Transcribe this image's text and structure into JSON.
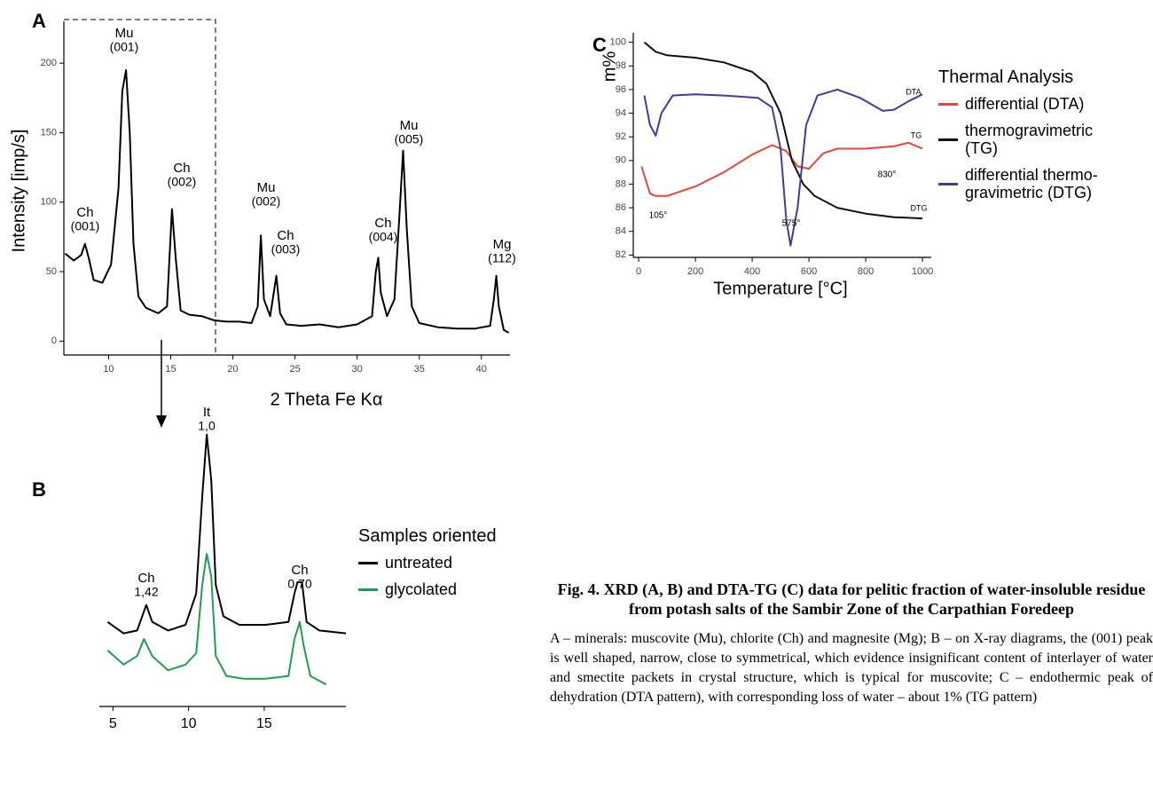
{
  "chart_data": [
    {
      "type": "line",
      "panel": "A",
      "y_label": "Intensity [imp/s]",
      "x_label": "2 Theta Fe Kα",
      "xlim": [
        6.4,
        42.3
      ],
      "ylim": [
        -10,
        225
      ],
      "xticks": [
        10,
        15,
        20,
        25,
        30,
        35,
        40
      ],
      "yticks": [
        0,
        50,
        100,
        150,
        200
      ],
      "series": [
        {
          "color": "#000000",
          "x": [
            6.5,
            7.2,
            7.8,
            8.1,
            8.4,
            8.8,
            9.5,
            10.2,
            10.8,
            11.1,
            11.4,
            11.7,
            12.0,
            12.4,
            13.0,
            14.0,
            14.7,
            15.1,
            15.4,
            15.8,
            16.5,
            17.5,
            18.5,
            19.5,
            20.5,
            21.5,
            22.0,
            22.25,
            22.5,
            23.0,
            23.5,
            23.8,
            24.3,
            25.5,
            27.0,
            28.5,
            30.0,
            31.2,
            31.5,
            31.7,
            31.9,
            32.4,
            33.0,
            33.4,
            33.7,
            34.0,
            34.4,
            35.0,
            36.5,
            38.0,
            39.5,
            40.7,
            41.0,
            41.2,
            41.4,
            41.8,
            42.2
          ],
          "values": [
            63,
            58,
            62,
            70,
            60,
            44,
            42,
            55,
            110,
            180,
            195,
            150,
            70,
            32,
            24,
            20,
            25,
            95,
            60,
            22,
            19,
            18,
            15,
            14,
            14,
            13,
            25,
            76,
            30,
            18,
            47,
            20,
            12,
            11,
            12,
            10,
            12,
            18,
            50,
            60,
            35,
            18,
            30,
            90,
            137,
            80,
            25,
            13,
            10,
            9,
            9,
            11,
            30,
            47,
            25,
            8,
            6
          ]
        }
      ],
      "annotations": [
        {
          "label": "Ch",
          "sub": "(001)"
        },
        {
          "label": "Mu",
          "sub": "(001)"
        },
        {
          "label": "Ch",
          "sub": "(002)"
        },
        {
          "label": "Mu",
          "sub": "(002)"
        },
        {
          "label": "Ch",
          "sub": "(003)"
        },
        {
          "label": "Ch",
          "sub": "(004)"
        },
        {
          "label": "Mu",
          "sub": "(005)"
        },
        {
          "label": "Mg",
          "sub": "(112)"
        }
      ]
    },
    {
      "type": "line",
      "panel": "B",
      "xlim": [
        4.1,
        20.4
      ],
      "ylim": [
        0,
        100
      ],
      "xticks": [
        5,
        10,
        15
      ],
      "legend_title": "Samples oriented",
      "series": [
        {
          "name": "untreated",
          "color": "#000000",
          "x": [
            4.65,
            5.7,
            6.6,
            7.2,
            7.6,
            8.65,
            9.8,
            10.5,
            10.9,
            11.2,
            11.5,
            11.8,
            12.3,
            13.35,
            15.1,
            16.6,
            17.0,
            17.2,
            17.5,
            17.8,
            18.65,
            20.4
          ],
          "values": [
            31,
            27,
            28,
            37,
            31,
            28,
            30,
            41,
            75,
            97,
            81,
            44,
            33,
            30,
            30,
            31,
            41,
            45,
            45,
            31,
            28,
            27
          ]
        },
        {
          "name": "glycolated",
          "color": "#1f9e4f",
          "x": [
            4.65,
            5.7,
            6.6,
            7.05,
            7.6,
            8.65,
            9.8,
            10.5,
            10.9,
            11.2,
            11.5,
            11.8,
            12.5,
            13.65,
            15.1,
            16.6,
            17.0,
            17.35,
            17.6,
            18.05,
            19.1
          ],
          "values": [
            21,
            16,
            19,
            25,
            19,
            14,
            16,
            20,
            44,
            55,
            47,
            19,
            12,
            11,
            11,
            12,
            25,
            31,
            23,
            12,
            9
          ]
        }
      ],
      "annotations": [
        {
          "label": "Ch",
          "sub": "1,42"
        },
        {
          "label": "It",
          "sub": "1,0"
        },
        {
          "label": "Ch",
          "sub": "0,70"
        }
      ]
    },
    {
      "type": "line",
      "panel": "C",
      "y_label": "m%",
      "x_label": "Temperature [°C]",
      "xlim": [
        -19,
        1031
      ],
      "ylim": [
        81.8,
        100.2
      ],
      "xticks": [
        0,
        200,
        400,
        600,
        800,
        1000
      ],
      "yticks": [
        82,
        84,
        86,
        88,
        90,
        92,
        94,
        96,
        98,
        100
      ],
      "legend_title": "Thermal Analysis",
      "series": [
        {
          "name": "differential (DTA)",
          "curve_label": "DTA",
          "color": "#e8453c",
          "x": [
            10,
            40,
            60,
            100,
            200,
            300,
            400,
            470,
            520,
            560,
            600,
            650,
            700,
            800,
            900,
            950,
            1000
          ],
          "values": [
            89.5,
            87.2,
            87,
            87,
            87.8,
            89,
            90.5,
            91.3,
            90.8,
            89.5,
            89.3,
            90.6,
            91,
            91,
            91.2,
            91.5,
            91
          ]
        },
        {
          "name": "thermogravimetric (TG)",
          "curve_label": "TG",
          "color": "#111111",
          "x": [
            20,
            60,
            100,
            200,
            300,
            400,
            450,
            500,
            540,
            580,
            620,
            700,
            800,
            900,
            1000
          ],
          "values": [
            100,
            99.2,
            98.9,
            98.7,
            98.3,
            97.5,
            96.5,
            94,
            90,
            88,
            87,
            86,
            85.5,
            85.2,
            85.1
          ]
        },
        {
          "name": "differential thermo-gravimetric (DTG)",
          "curve_label": "DTG",
          "color": "#3a3f9a",
          "x": [
            20,
            40,
            60,
            80,
            120,
            200,
            300,
            420,
            470,
            500,
            520,
            535,
            560,
            590,
            630,
            700,
            780,
            860,
            900,
            950,
            1000
          ],
          "values": [
            95.5,
            93,
            92.1,
            94,
            95.5,
            95.6,
            95.5,
            95.3,
            94.5,
            91,
            85,
            82.8,
            86,
            93,
            95.5,
            96,
            95.3,
            94.2,
            94.3,
            95,
            95.6
          ]
        }
      ],
      "annotations": [
        {
          "label": "105°"
        },
        {
          "label": "575°"
        },
        {
          "label": "830°"
        }
      ]
    }
  ],
  "caption": {
    "title": "Fig. 4. XRD (A, B) and DTA-TG (C) data for pelitic fraction of water-insoluble residue from potash salts of the Sambir Zone of the Carpathian Foredeep",
    "text": "A – minerals: muscovite (Mu), chlorite (Ch) and magnesite (Mg); B – on X-ray diagrams, the (001) peak is well shaped, narrow, close to symmetrical, which evidence insignificant content of interlayer of water and smectite packets in crystal structure, which is typical for muscovite; C – endothermic peak of dehydration (DTA pattern), with corresponding loss of water – about 1% (TG pattern)"
  }
}
